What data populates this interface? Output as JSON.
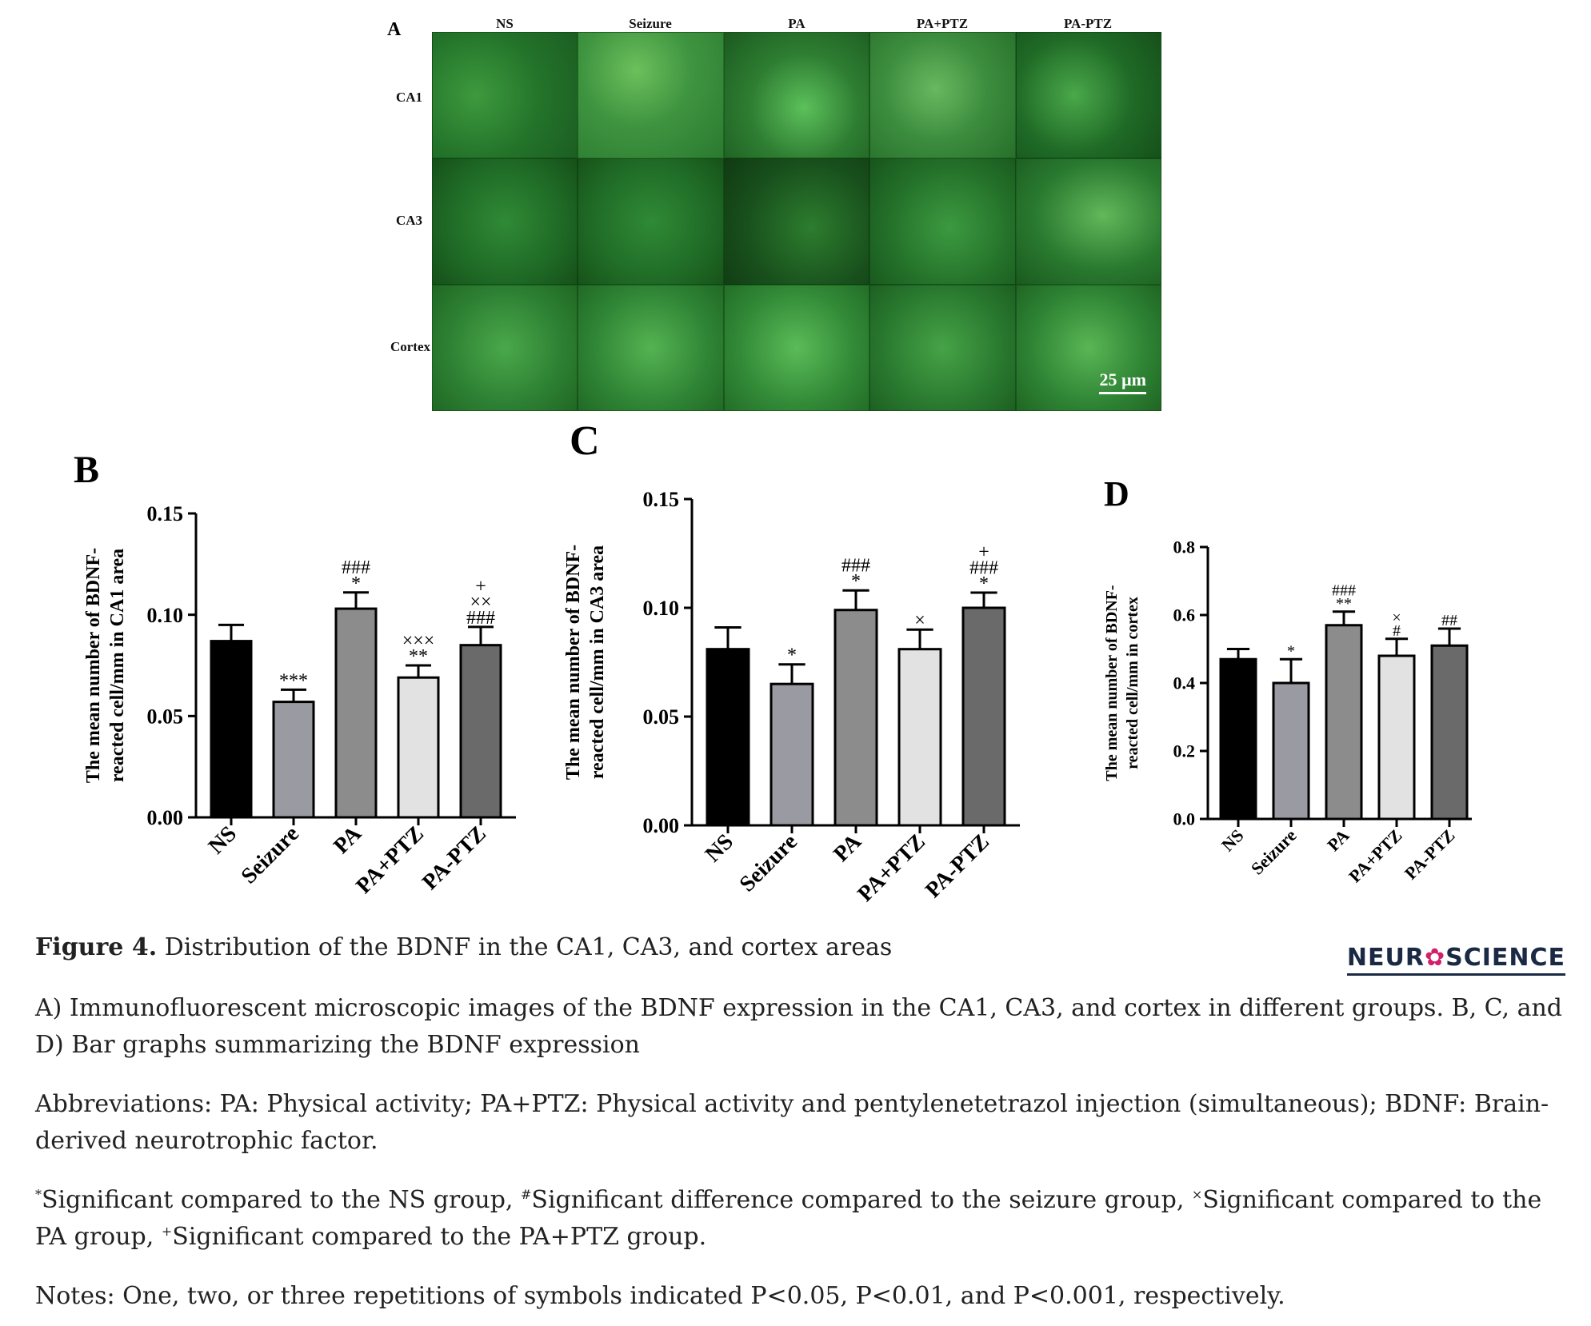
{
  "panel_a": {
    "letter": "A",
    "columns": [
      "NS",
      "Seizure",
      "PA",
      "PA+PTZ",
      "PA-PTZ"
    ],
    "rows": [
      "CA1",
      "CA3",
      "Cortex"
    ],
    "scale_bar": "25 µm"
  },
  "chart_data": [
    {
      "panel": "B",
      "type": "bar",
      "categories": [
        "NS",
        "Seizure",
        "PA",
        "PA+PTZ",
        "PA-PTZ"
      ],
      "values": [
        0.087,
        0.057,
        0.103,
        0.069,
        0.085
      ],
      "errors": [
        0.008,
        0.006,
        0.008,
        0.006,
        0.009
      ],
      "ylabel_line1": "The mean number of BDNF-",
      "ylabel_line2": "reacted cell/mm in CA1 area",
      "ylim": [
        0,
        0.15
      ],
      "yticks": [
        "0.00",
        "0.05",
        "0.10",
        "0.15"
      ],
      "annotations": [
        [],
        [
          "***"
        ],
        [
          "###",
          "*"
        ],
        [
          "×××",
          "**"
        ],
        [
          "+",
          "××",
          "###"
        ]
      ],
      "colors": [
        "#000000",
        "#9a9aa2",
        "#8c8c8c",
        "#e2e2e2",
        "#6a6a6a"
      ]
    },
    {
      "panel": "C",
      "type": "bar",
      "categories": [
        "NS",
        "Seizure",
        "PA",
        "PA+PTZ",
        "PA-PTZ"
      ],
      "values": [
        0.081,
        0.065,
        0.099,
        0.081,
        0.1
      ],
      "errors": [
        0.01,
        0.009,
        0.009,
        0.009,
        0.007
      ],
      "ylabel_line1": "The mean number of BDNF-",
      "ylabel_line2": "reacted cell/mm in CA3 area",
      "ylim": [
        0,
        0.15
      ],
      "yticks": [
        "0.00",
        "0.05",
        "0.10",
        "0.15"
      ],
      "annotations": [
        [],
        [
          "*"
        ],
        [
          "###",
          "*"
        ],
        [
          "×"
        ],
        [
          "+",
          "###",
          "*"
        ]
      ],
      "colors": [
        "#000000",
        "#9a9aa2",
        "#8c8c8c",
        "#e2e2e2",
        "#6a6a6a"
      ]
    },
    {
      "panel": "D",
      "type": "bar",
      "categories": [
        "NS",
        "Seizure",
        "PA",
        "PA+PTZ",
        "PA-PTZ"
      ],
      "values": [
        0.47,
        0.4,
        0.57,
        0.48,
        0.51
      ],
      "errors": [
        0.03,
        0.07,
        0.04,
        0.05,
        0.05
      ],
      "ylabel_line1": "The mean number of BDNF-",
      "ylabel_line2": "reacted cell/mm in cortex",
      "ylim": [
        0,
        0.8
      ],
      "yticks": [
        "0.0",
        "0.2",
        "0.4",
        "0.6",
        "0.8"
      ],
      "annotations": [
        [],
        [
          "*"
        ],
        [
          "###",
          "**"
        ],
        [
          "×",
          "#"
        ],
        [
          "##"
        ]
      ],
      "colors": [
        "#000000",
        "#9a9aa2",
        "#8c8c8c",
        "#e2e2e2",
        "#6a6a6a"
      ]
    }
  ],
  "caption": {
    "figure_label": "Figure 4.",
    "title": "Distribution of the BDNF in the CA1, CA3, and cortex areas",
    "logo_left": "NEUR",
    "logo_o": "✿",
    "logo_right": "SCIENCE",
    "para1": "A) Immunofluorescent microscopic images of the BDNF expression in the CA1, CA3, and cortex in different groups. B, C, and D) Bar graphs summarizing the BDNF expression",
    "para2": "Abbreviations: PA: Physical activity; PA+PTZ: Physical activity and pentylenetetrazol injection (simultaneous); BDNF: Brain-derived neurotrophic factor.",
    "para3_sym1": "*",
    "para3_text1": "Significant compared to the NS group, ",
    "para3_sym2": "#",
    "para3_text2": "Significant difference compared to the seizure group, ",
    "para3_sym3": "×",
    "para3_text3": "Significant compared to the PA group, ",
    "para3_sym4": "+",
    "para3_text4": "Significant compared to the PA+PTZ group.",
    "para4": "Notes: One, two, or three repetitions of symbols indicated P<0.05, P<0.01, and P<0.001, respectively."
  }
}
